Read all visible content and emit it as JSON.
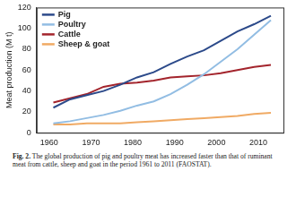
{
  "chart_data": {
    "type": "line",
    "y_label": "Meat production (M t)",
    "caption_label": "Fig. 2.",
    "caption": "The global production of pig and poultry meat has increased faster than that of ruminant meat from cattle, sheep and goat in the period 1961 to 2011 (FAOSTAT).",
    "x": [
      1961,
      1965,
      1969,
      1973,
      1977,
      1981,
      1985,
      1989,
      1993,
      1997,
      2001,
      2005,
      2009,
      2013
    ],
    "series": [
      {
        "name": "Pig",
        "color": "#2c4a8a",
        "values": [
          24,
          32,
          36,
          40,
          46,
          53,
          58,
          66,
          73,
          79,
          88,
          97,
          104,
          112
        ]
      },
      {
        "name": "Poultry",
        "color": "#92bde3",
        "values": [
          9,
          11,
          14,
          17,
          21,
          26,
          30,
          37,
          46,
          56,
          68,
          80,
          94,
          108
        ]
      },
      {
        "name": "Cattle",
        "color": "#a3242c",
        "values": [
          29,
          33,
          37,
          44,
          47,
          48,
          50,
          53,
          54,
          55,
          57,
          60,
          63,
          65
        ]
      },
      {
        "name": "Sheep & goat",
        "color": "#f0aa64",
        "values": [
          8,
          8,
          9,
          9,
          9,
          10,
          11,
          12,
          13,
          14,
          15,
          16,
          18,
          19
        ]
      }
    ],
    "xlim": [
      1957,
      2016
    ],
    "xticks": [
      1960,
      1970,
      1980,
      1990,
      2000,
      2010
    ],
    "ylim": [
      0,
      120
    ],
    "yticks": [
      0,
      20,
      40,
      60,
      80,
      100,
      120
    ],
    "grid": false,
    "legend": "upper left"
  }
}
